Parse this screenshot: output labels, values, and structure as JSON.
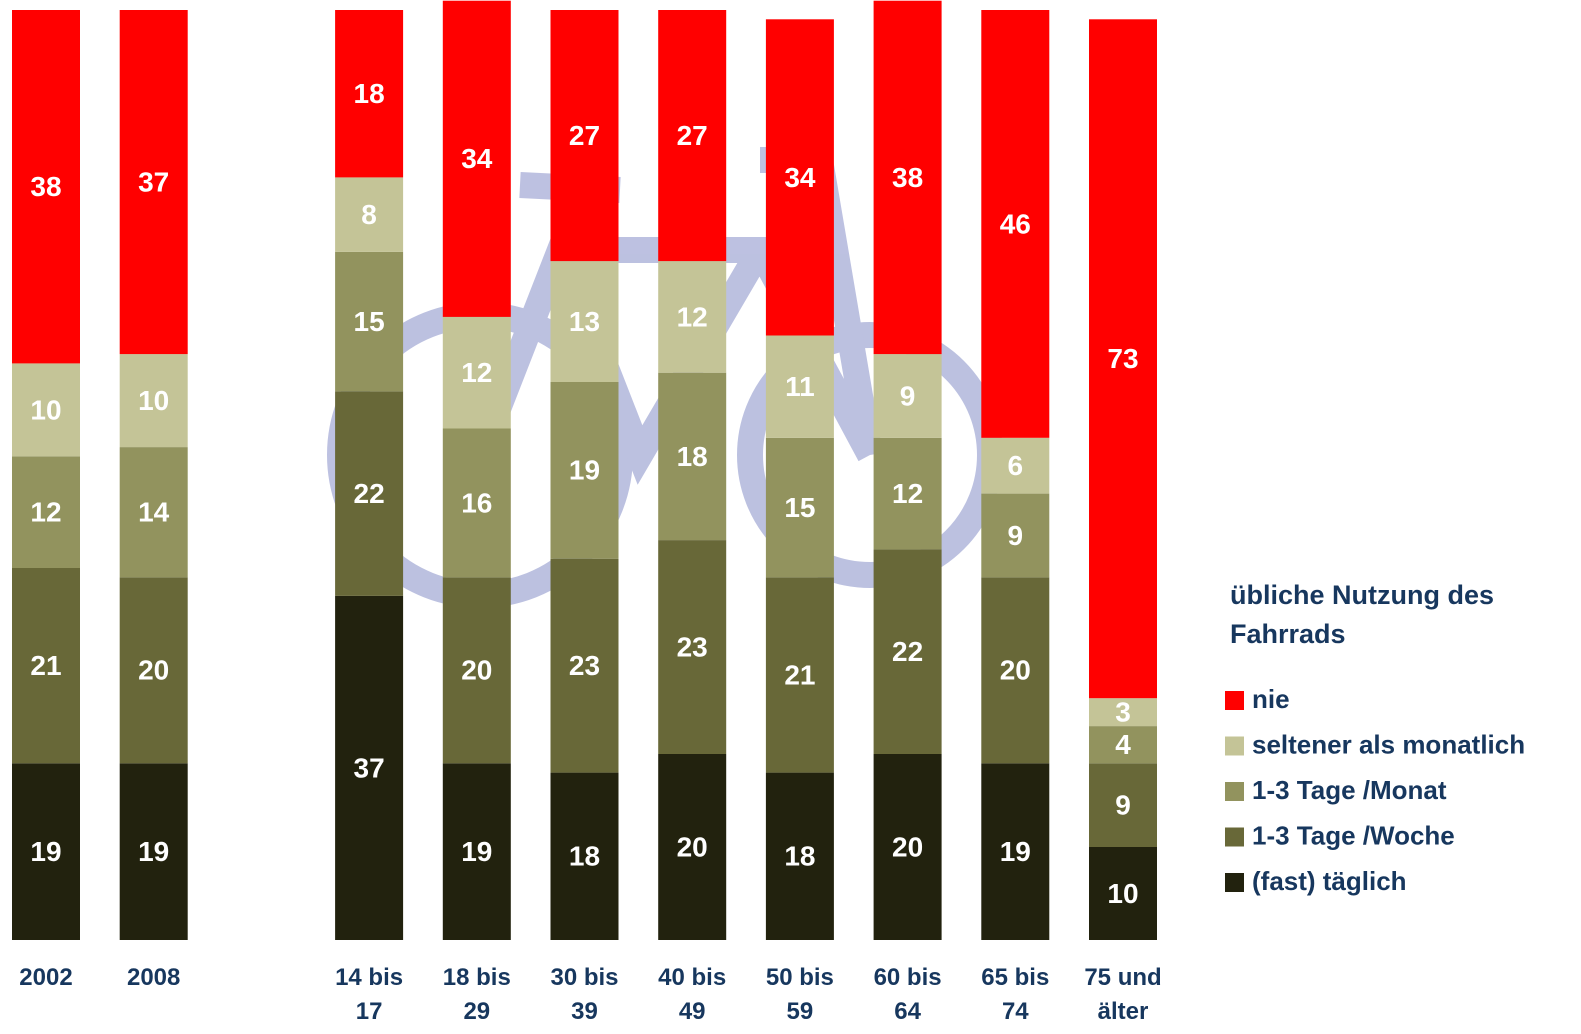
{
  "chart_data": {
    "type": "stacked_bar",
    "categories": [
      "2002",
      "2008",
      "14 bis 17",
      "18 bis 29",
      "30 bis 39",
      "40 bis 49",
      "50 bis 59",
      "60 bis 64",
      "65 bis 74",
      "75 und älter"
    ],
    "ylim": [
      0,
      100
    ],
    "legend_title": "übliche Nutzung des Fahrrads",
    "legend": "right",
    "series": [
      {
        "name": "(fast) täglich",
        "color": "#22220e",
        "values": [
          19,
          19,
          37,
          19,
          18,
          20,
          18,
          20,
          19,
          10
        ]
      },
      {
        "name": "1-3 Tage /Woche",
        "color": "#686838",
        "values": [
          21,
          20,
          22,
          20,
          23,
          23,
          21,
          22,
          20,
          9
        ]
      },
      {
        "name": "1-3 Tage /Monat",
        "color": "#92935e",
        "values": [
          12,
          14,
          15,
          16,
          19,
          18,
          15,
          12,
          9,
          4
        ]
      },
      {
        "name": "seltener als monatlich",
        "color": "#c4c497",
        "values": [
          10,
          10,
          8,
          12,
          13,
          12,
          11,
          9,
          6,
          3
        ]
      },
      {
        "name": "nie",
        "color": "#ff0000",
        "values": [
          38,
          37,
          18,
          34,
          27,
          27,
          34,
          38,
          46,
          73
        ]
      }
    ]
  }
}
